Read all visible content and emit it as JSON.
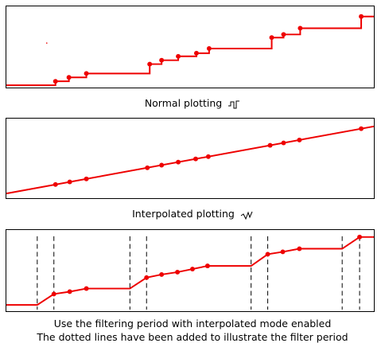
{
  "captions": {
    "normal": "Normal plotting",
    "interpolated": "Interpolated plotting",
    "filter_line1": "Use the filtering period with interpolated mode enabled",
    "filter_line2": "The dotted lines have been added to illustrate the filter period"
  },
  "colors": {
    "trace": "#ee0000",
    "marker": "#ee0000",
    "filter_line": "#000000",
    "border": "#000000"
  },
  "icons": {
    "normal": "step-waveform-icon",
    "interpolated": "ramp-waveform-icon"
  }
}
